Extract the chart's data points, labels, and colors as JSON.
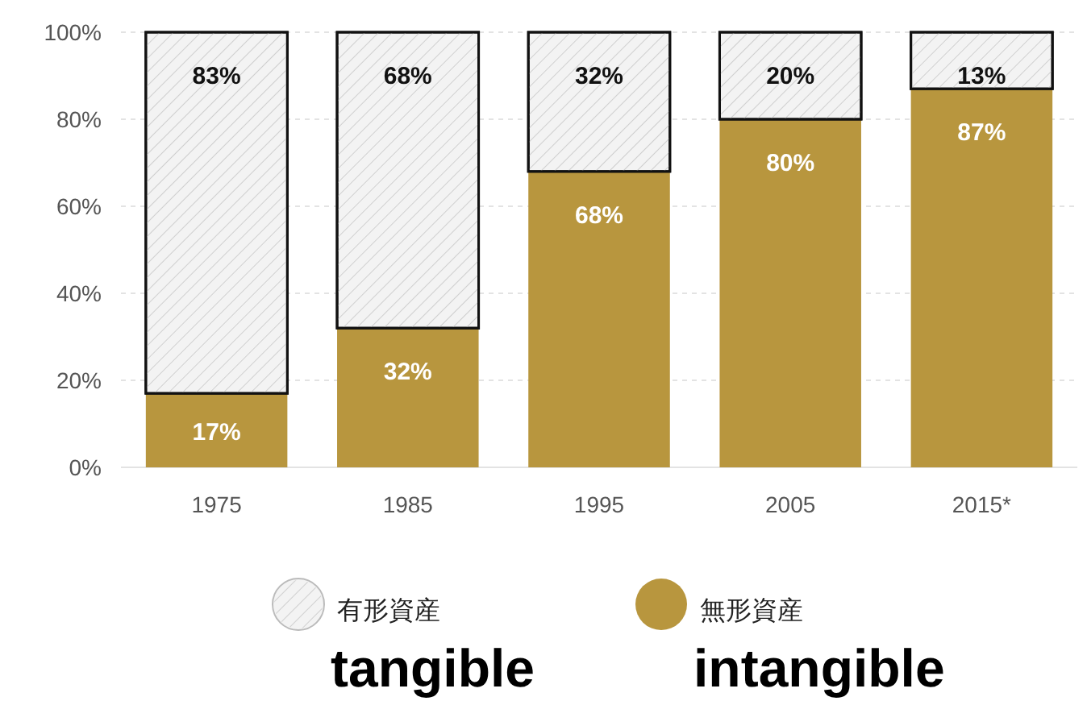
{
  "chart_data": {
    "type": "bar",
    "stacked": true,
    "categories": [
      "1975",
      "1985",
      "1995",
      "2005",
      "2015*"
    ],
    "series": [
      {
        "name": "無形資産",
        "color": "#b8963e",
        "values": [
          17,
          32,
          68,
          80,
          87
        ]
      },
      {
        "name": "有形資産",
        "color": "#f3f3f3",
        "values": [
          83,
          68,
          32,
          20,
          13
        ]
      }
    ],
    "ylim": [
      0,
      100
    ],
    "yticks": [
      {
        "value": 0,
        "label": "0%"
      },
      {
        "value": 20,
        "label": "20%"
      },
      {
        "value": 40,
        "label": "40%"
      },
      {
        "value": 60,
        "label": "60%"
      },
      {
        "value": 80,
        "label": "80%"
      },
      {
        "value": 100,
        "label": "100%"
      }
    ],
    "value_labels": [
      "17%",
      "32%",
      "68%",
      "80%",
      "87%",
      "83%",
      "68%",
      "32%",
      "20%",
      "13%"
    ],
    "grid": "y",
    "legend": "bottom",
    "annotations": [
      "tangible",
      "intangible"
    ]
  }
}
